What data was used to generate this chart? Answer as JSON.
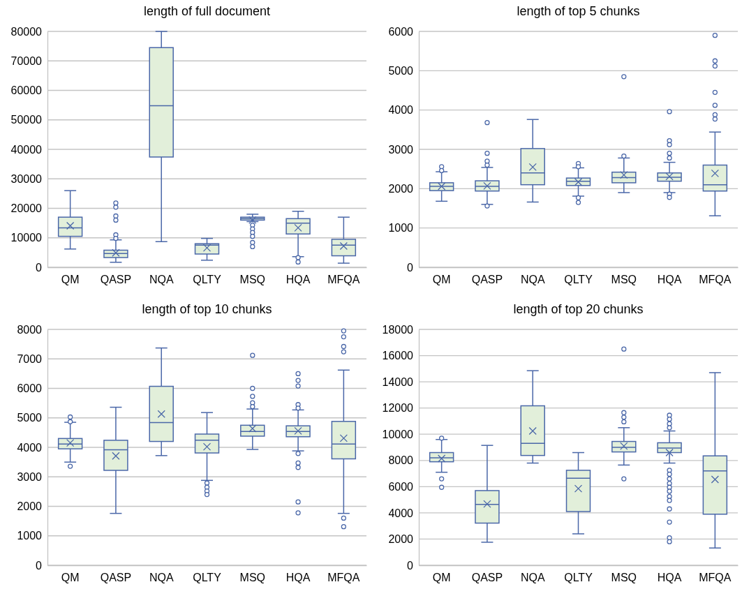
{
  "chart_data": [
    {
      "type": "box",
      "title": "length of full document",
      "categories": [
        "QM",
        "QASP",
        "NQA",
        "QLTY",
        "MSQ",
        "HQA",
        "MFQA"
      ],
      "ylim": [
        0,
        80000
      ],
      "yticks": [
        0,
        10000,
        20000,
        30000,
        40000,
        50000,
        60000,
        70000,
        80000
      ],
      "grid": "y",
      "marker": "circle",
      "series": [
        {
          "color": "#4a67a8",
          "boxes": [
            {
              "low": 6200,
              "q1": 10500,
              "median": 13400,
              "q3": 17000,
              "high": 26000,
              "mean": 14100
            },
            {
              "low": 1700,
              "q1": 3300,
              "median": 4700,
              "q3": 5800,
              "high": 9300,
              "mean": 4900,
              "outliers": [
                21800,
                20400,
                17400,
                16000,
                11000,
                9800
              ]
            },
            {
              "low": 8700,
              "q1": 37400,
              "median": 54800,
              "q3": 74500,
              "high": 80000
            },
            {
              "low": 2400,
              "q1": 4500,
              "median": 7500,
              "q3": 8000,
              "high": 9800,
              "mean": 6600
            },
            {
              "low": 15500,
              "q1": 16000,
              "median": 16500,
              "q3": 17000,
              "high": 18000,
              "mean": 16000,
              "outliers": [
                14300,
                13000,
                11800,
                10500,
                8400,
                7000
              ]
            },
            {
              "low": 3600,
              "q1": 11300,
              "median": 15000,
              "q3": 16500,
              "high": 19000,
              "mean": 13400,
              "outliers": [
                3300,
                1800
              ]
            },
            {
              "low": 1400,
              "q1": 3900,
              "median": 7500,
              "q3": 9500,
              "high": 17000,
              "mean": 7200
            }
          ]
        }
      ]
    },
    {
      "type": "box",
      "title": "length of top 5 chunks",
      "categories": [
        "QM",
        "QASP",
        "NQA",
        "QLTY",
        "MSQ",
        "HQA",
        "MFQA"
      ],
      "ylim": [
        0,
        6000
      ],
      "yticks": [
        0,
        1000,
        2000,
        3000,
        4000,
        5000,
        6000
      ],
      "grid": "y",
      "marker": "circle",
      "series": [
        {
          "color": "#4a67a8",
          "boxes": [
            {
              "low": 1680,
              "q1": 1950,
              "median": 2060,
              "q3": 2150,
              "high": 2430,
              "mean": 2060,
              "outliers": [
                2560,
                2460
              ]
            },
            {
              "low": 1600,
              "q1": 1940,
              "median": 2060,
              "q3": 2200,
              "high": 2540,
              "mean": 2070,
              "outliers": [
                3680,
                2900,
                2700,
                2600,
                1560
              ]
            },
            {
              "low": 1660,
              "q1": 2100,
              "median": 2400,
              "q3": 3020,
              "high": 3760,
              "mean": 2550
            },
            {
              "low": 1810,
              "q1": 2080,
              "median": 2190,
              "q3": 2270,
              "high": 2530,
              "mean": 2170,
              "outliers": [
                2640,
                2560,
                1770,
                1650
              ]
            },
            {
              "low": 1900,
              "q1": 2150,
              "median": 2280,
              "q3": 2420,
              "high": 2780,
              "mean": 2350,
              "outliers": [
                4850,
                2830
              ]
            },
            {
              "low": 1900,
              "q1": 2190,
              "median": 2290,
              "q3": 2400,
              "high": 2670,
              "mean": 2310,
              "outliers": [
                3960,
                3220,
                3120,
                2900,
                2780,
                1860,
                1780
              ]
            },
            {
              "low": 1310,
              "q1": 1940,
              "median": 2100,
              "q3": 2600,
              "high": 3440,
              "mean": 2390,
              "outliers": [
                5900,
                5250,
                5120,
                4450,
                4120,
                3880,
                3770
              ]
            }
          ]
        }
      ]
    },
    {
      "type": "box",
      "title": "length of top 10 chunks",
      "categories": [
        "QM",
        "QASP",
        "NQA",
        "QLTY",
        "MSQ",
        "HQA",
        "MFQA"
      ],
      "ylim": [
        0,
        8000
      ],
      "yticks": [
        0,
        1000,
        2000,
        3000,
        4000,
        5000,
        6000,
        7000,
        8000
      ],
      "grid": "y",
      "marker": "circle",
      "series": [
        {
          "color": "#4a67a8",
          "boxes": [
            {
              "low": 3500,
              "q1": 3950,
              "median": 4110,
              "q3": 4300,
              "high": 4850,
              "mean": 4150,
              "outliers": [
                5030,
                4870,
                3360
              ]
            },
            {
              "low": 1760,
              "q1": 3220,
              "median": 3920,
              "q3": 4240,
              "high": 5360,
              "mean": 3710
            },
            {
              "low": 3720,
              "q1": 4200,
              "median": 4840,
              "q3": 6070,
              "high": 7370,
              "mean": 5130
            },
            {
              "low": 2880,
              "q1": 3810,
              "median": 4240,
              "q3": 4450,
              "high": 5180,
              "mean": 4020,
              "outliers": [
                2790,
                2650,
                2520,
                2400
              ]
            },
            {
              "low": 3930,
              "q1": 4380,
              "median": 4540,
              "q3": 4750,
              "high": 5300,
              "mean": 4640,
              "outliers": [
                7120,
                6000,
                5730,
                5510,
                5380
              ]
            },
            {
              "low": 3880,
              "q1": 4360,
              "median": 4540,
              "q3": 4730,
              "high": 5270,
              "mean": 4560,
              "outliers": [
                6500,
                6270,
                6080,
                5450,
                5330,
                3790,
                3470,
                3320,
                2150,
                1780
              ]
            },
            {
              "low": 1760,
              "q1": 3610,
              "median": 4110,
              "q3": 4880,
              "high": 6620,
              "mean": 4310,
              "outliers": [
                7950,
                7750,
                7420,
                7240,
                1600,
                1310
              ]
            }
          ]
        }
      ]
    },
    {
      "type": "box",
      "title": "length of top 20 chunks",
      "categories": [
        "QM",
        "QASP",
        "NQA",
        "QLTY",
        "MSQ",
        "HQA",
        "MFQA"
      ],
      "ylim": [
        0,
        18000
      ],
      "yticks": [
        0,
        2000,
        4000,
        6000,
        8000,
        10000,
        12000,
        14000,
        16000,
        18000
      ],
      "grid": "y",
      "marker": "circle",
      "series": [
        {
          "color": "#4a67a8",
          "boxes": [
            {
              "low": 7100,
              "q1": 7900,
              "median": 8200,
              "q3": 8600,
              "high": 9600,
              "mean": 8150,
              "outliers": [
                9700,
                6600,
                5950
              ]
            },
            {
              "low": 1760,
              "q1": 3220,
              "median": 4650,
              "q3": 5700,
              "high": 9150,
              "mean": 4680
            },
            {
              "low": 7800,
              "q1": 8380,
              "median": 9300,
              "q3": 12170,
              "high": 14850,
              "mean": 10250
            },
            {
              "low": 2400,
              "q1": 4100,
              "median": 6650,
              "q3": 7250,
              "high": 8600,
              "mean": 5850
            },
            {
              "low": 7650,
              "q1": 8650,
              "median": 9000,
              "q3": 9450,
              "high": 10500,
              "mean": 9100,
              "outliers": [
                16500,
                11650,
                11300,
                10950,
                6600
              ]
            },
            {
              "low": 7800,
              "q1": 8600,
              "median": 8950,
              "q3": 9350,
              "high": 10250,
              "mean": 8600,
              "outliers": [
                11450,
                11150,
                10800,
                10500,
                7250,
                6950,
                6600,
                6250,
                5950,
                5650,
                5250,
                4950,
                4300,
                3300,
                2100,
                1800
              ]
            },
            {
              "low": 1320,
              "q1": 3900,
              "median": 7200,
              "q3": 8350,
              "high": 14700,
              "mean": 6550
            }
          ]
        }
      ]
    }
  ]
}
